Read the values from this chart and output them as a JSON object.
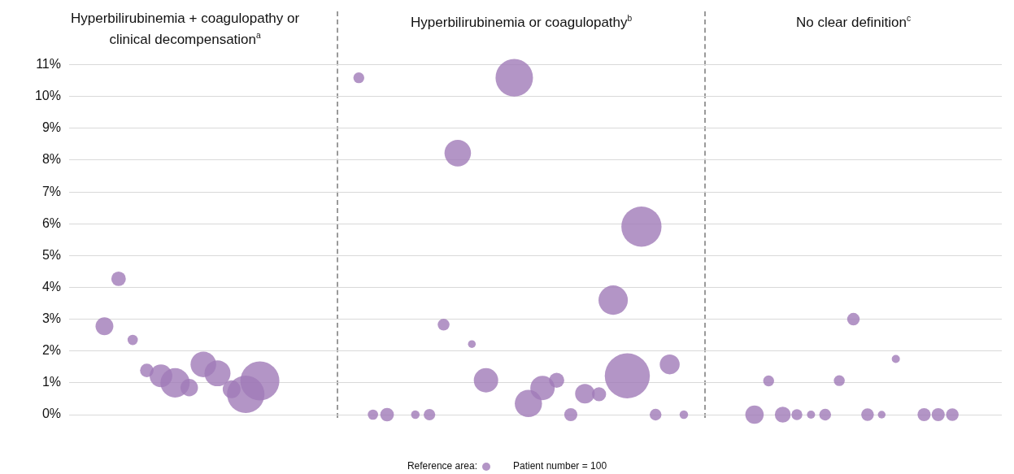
{
  "chart_data": {
    "type": "bubble",
    "annotations": [
      "Hyperbilirubinemia + coagulopathy or clinical decompensation$^{a}$",
      "Hyperbilirubinemia or coagulopathy$^{b}$",
      "No clear definition$^{c}$"
    ],
    "categories": [
      null,
      null,
      null,
      null,
      null,
      null,
      null,
      null,
      null,
      null,
      null,
      null,
      null,
      null,
      null,
      null,
      null,
      null,
      null,
      null,
      null,
      null,
      null,
      null,
      null,
      null,
      null,
      null,
      null,
      null,
      null,
      null,
      null,
      null,
      null,
      null,
      null,
      null,
      null,
      null,
      null,
      null,
      null,
      null,
      null,
      null,
      null,
      null,
      null,
      null,
      null,
      null,
      null,
      null,
      null,
      null,
      null,
      null,
      null,
      null,
      null,
      null,
      null,
      null,
      null,
      null
    ],
    "color": "#a07ab8",
    "values": [
      null,
      null,
      2.78,
      4.27,
      2.35,
      1.39,
      1.22,
      1.0,
      0.85,
      1.58,
      1.3,
      0.8,
      0.64,
      1.06,
      null,
      null,
      null,
      null,
      null,
      null,
      10.59,
      0,
      0,
      null,
      0,
      0,
      2.83,
      8.22,
      2.22,
      1.08,
      null,
      10.59,
      0.35,
      0.84,
      1.08,
      0,
      0.66,
      0.64,
      3.6,
      1.22,
      5.91,
      0,
      1.58,
      0,
      null,
      null,
      null,
      null,
      0,
      1.06,
      0,
      0,
      0,
      0,
      1.07,
      3.0,
      0,
      0,
      1.75,
      null,
      0,
      0,
      0,
      null,
      null,
      null
    ],
    "sizes": [
      null,
      null,
      480,
      320,
      160,
      280,
      780,
      1300,
      460,
      990,
      1020,
      480,
      2120,
      2300,
      null,
      null,
      null,
      null,
      null,
      null,
      180,
      160,
      280,
      null,
      110,
      200,
      210,
      1060,
      90,
      900,
      null,
      2120,
      1120,
      900,
      350,
      260,
      580,
      300,
      1300,
      3070,
      2440,
      210,
      600,
      110,
      null,
      null,
      null,
      null,
      510,
      180,
      380,
      180,
      100,
      210,
      180,
      240,
      240,
      90,
      100,
      null,
      260,
      260,
      240,
      null,
      null,
      null
    ],
    "ylim": [
      0,
      11
    ],
    "yticks": [
      {
        "value": 0,
        "label": "0%"
      },
      {
        "value": 1,
        "label": "1%"
      },
      {
        "value": 2,
        "label": "2%"
      },
      {
        "value": 3,
        "label": "3%"
      },
      {
        "value": 4,
        "label": "4%"
      },
      {
        "value": 5,
        "label": "5%"
      },
      {
        "value": 6,
        "label": "6%"
      },
      {
        "value": 7,
        "label": "7%"
      },
      {
        "value": 8,
        "label": "8%"
      },
      {
        "value": 9,
        "label": "9%"
      },
      {
        "value": 10,
        "label": "10%"
      },
      {
        "value": 11,
        "label": "11%"
      }
    ],
    "grid": "y",
    "tick_labels": "y",
    "legend_title": "Reference area:",
    "size_legend": [
      {
        "value": 100,
        "label": "Patient number = 100"
      }
    ]
  }
}
